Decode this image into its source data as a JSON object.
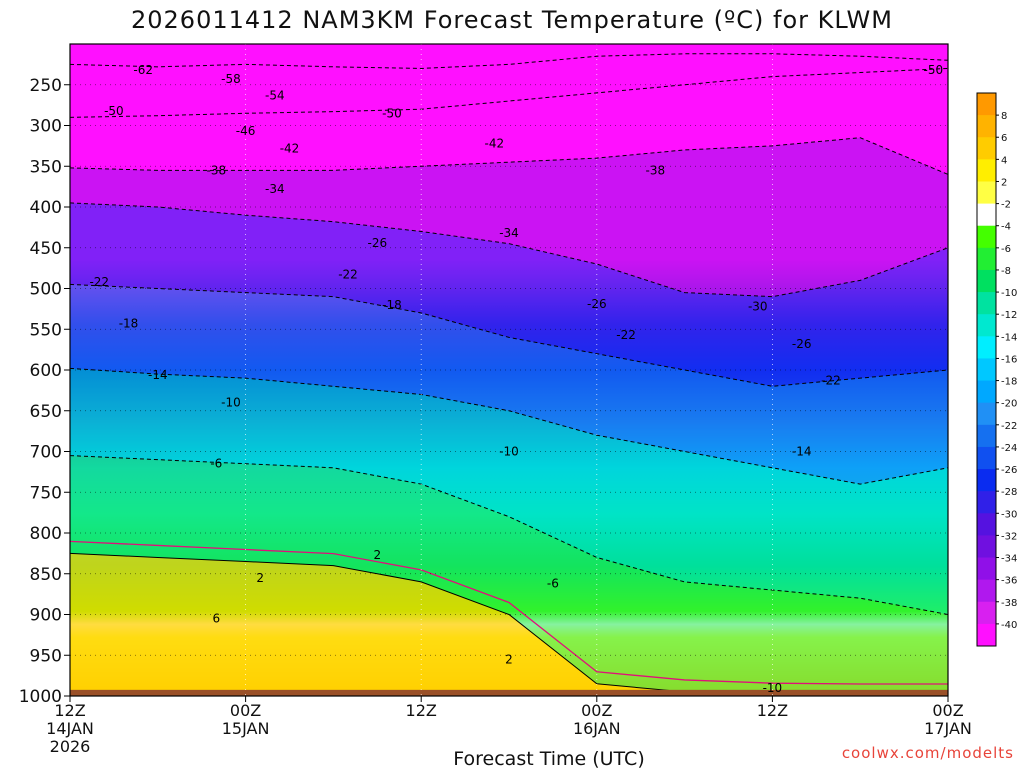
{
  "title": "2026011412 NAM3KM Forecast Temperature (ºC) for KLWM",
  "watermark": "coolwx.com/modelts",
  "chart_data": {
    "type": "heatmap",
    "title": "2026011412 NAM3KM Forecast Temperature (ºC) for KLWM",
    "xlabel": "Forecast Time (UTC)",
    "ylabel": "",
    "x_ticks": [
      {
        "l1": "12Z",
        "l2": "14JAN",
        "l3": "2026"
      },
      {
        "l1": "00Z",
        "l2": "15JAN",
        "l3": ""
      },
      {
        "l1": "12Z",
        "l2": "",
        "l3": ""
      },
      {
        "l1": "00Z",
        "l2": "16JAN",
        "l3": ""
      },
      {
        "l1": "12Z",
        "l2": "",
        "l3": ""
      },
      {
        "l1": "00Z",
        "l2": "17JAN",
        "l3": ""
      }
    ],
    "y_ticks": [
      "250",
      "300",
      "350",
      "400",
      "450",
      "500",
      "550",
      "600",
      "650",
      "700",
      "750",
      "800",
      "850",
      "900",
      "950",
      "1000"
    ],
    "y_range_hpa": [
      200,
      1000
    ],
    "colorbar_labels": [
      "8",
      "6",
      "4",
      "2",
      "-2",
      "-4",
      "-6",
      "-8",
      "-10",
      "-12",
      "-14",
      "-16",
      "-18",
      "-20",
      "-22",
      "-24",
      "-26",
      "-28",
      "-30",
      "-32",
      "-34",
      "-36",
      "-38",
      "-40"
    ],
    "colorbar_colors": [
      "#ff9900",
      "#ffb300",
      "#ffcc00",
      "#ffee00",
      "#ffff44",
      "#ffffff",
      "#44ff00",
      "#22ee33",
      "#00e060",
      "#00e2a0",
      "#00e8d0",
      "#00eeff",
      "#00c8ff",
      "#00a8ff",
      "#2090f5",
      "#1570f0",
      "#1050f0",
      "#0a2cf0",
      "#3020e8",
      "#5512e0",
      "#7010e0",
      "#9010e8",
      "#b018ee",
      "#d820f0",
      "#ff10ff"
    ],
    "series": [
      {
        "time_h": [
          0,
          6,
          12,
          18,
          24,
          30,
          36,
          42,
          48,
          54,
          60
        ],
        "p_hpa": {
          "n62": [
            225,
            228,
            225,
            228,
            230,
            225,
            215,
            212,
            212,
            215,
            220
          ],
          "n50": [
            290,
            288,
            285,
            283,
            280,
            270,
            260,
            250,
            240,
            235,
            230
          ],
          "n38": [
            352,
            355,
            355,
            355,
            350,
            345,
            340,
            330,
            325,
            315,
            360
          ],
          "n30": [
            395,
            400,
            410,
            418,
            430,
            445,
            470,
            505,
            510,
            490,
            450
          ],
          "n22": [
            495,
            500,
            505,
            510,
            530,
            560,
            580,
            600,
            620,
            610,
            600
          ],
          "n14": [
            598,
            605,
            610,
            620,
            630,
            650,
            680,
            700,
            720,
            740,
            720
          ],
          "n6": [
            705,
            710,
            715,
            720,
            740,
            780,
            830,
            860,
            870,
            880,
            900
          ],
          "p2": [
            825,
            830,
            835,
            840,
            860,
            900,
            985,
            995,
            999,
            1000,
            1000
          ]
        }
      }
    ],
    "contour_labels": [
      {
        "text": "-62",
        "t": 5,
        "p": 232
      },
      {
        "text": "-58",
        "t": 11,
        "p": 243
      },
      {
        "text": "-54",
        "t": 14,
        "p": 263
      },
      {
        "text": "-50",
        "t": 3,
        "p": 282
      },
      {
        "text": "-50",
        "t": 22,
        "p": 285
      },
      {
        "text": "-50",
        "t": 59,
        "p": 232
      },
      {
        "text": "-46",
        "t": 12,
        "p": 307
      },
      {
        "text": "-42",
        "t": 15,
        "p": 328
      },
      {
        "text": "-42",
        "t": 29,
        "p": 322
      },
      {
        "text": "-38",
        "t": 10,
        "p": 355
      },
      {
        "text": "-38",
        "t": 40,
        "p": 355
      },
      {
        "text": "-34",
        "t": 14,
        "p": 378
      },
      {
        "text": "-34",
        "t": 30,
        "p": 432
      },
      {
        "text": "-26",
        "t": 21,
        "p": 444
      },
      {
        "text": "-26",
        "t": 36,
        "p": 519
      },
      {
        "text": "-26",
        "t": 50,
        "p": 568
      },
      {
        "text": "-22",
        "t": 2,
        "p": 492
      },
      {
        "text": "-22",
        "t": 19,
        "p": 483
      },
      {
        "text": "-22",
        "t": 38,
        "p": 557
      },
      {
        "text": "-22",
        "t": 52,
        "p": 613
      },
      {
        "text": "-30",
        "t": 47,
        "p": 522
      },
      {
        "text": "-18",
        "t": 4,
        "p": 543
      },
      {
        "text": "-18",
        "t": 22,
        "p": 520
      },
      {
        "text": "-14",
        "t": 6,
        "p": 606
      },
      {
        "text": "-14",
        "t": 50,
        "p": 700
      },
      {
        "text": "-10",
        "t": 11,
        "p": 640
      },
      {
        "text": "-10",
        "t": 30,
        "p": 700
      },
      {
        "text": "-10",
        "t": 48,
        "p": 990
      },
      {
        "text": "-6",
        "t": 10,
        "p": 715
      },
      {
        "text": "-6",
        "t": 33,
        "p": 862
      },
      {
        "text": "2",
        "t": 13,
        "p": 855
      },
      {
        "text": "2",
        "t": 21,
        "p": 827
      },
      {
        "text": "2",
        "t": 30,
        "p": 955
      },
      {
        "text": "6",
        "t": 10,
        "p": 905
      }
    ]
  }
}
